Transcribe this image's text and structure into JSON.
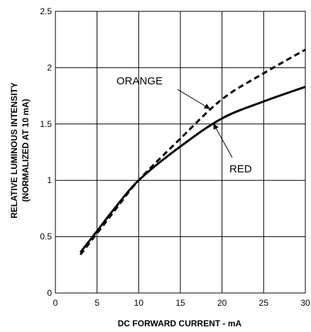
{
  "chart_data": {
    "type": "line",
    "xlabel": "DC FORWARD CURRENT - mA",
    "ylabel_line1": "RELATIVE LUMINOUS INTENSITY",
    "ylabel_line2": "(NORMALIZED AT 10 mA)",
    "xlim": [
      0,
      30
    ],
    "ylim": [
      0,
      2.5
    ],
    "x_ticks": [
      0,
      5,
      10,
      15,
      20,
      25,
      30
    ],
    "y_ticks": [
      0,
      0.5,
      1,
      1.5,
      2,
      2.5
    ],
    "x_tick_labels": [
      "0",
      "5",
      "10",
      "15",
      "20",
      "25",
      "30"
    ],
    "y_tick_labels": [
      "0",
      "0.5",
      "1",
      "1.5",
      "2",
      "2.5"
    ],
    "grid": true,
    "series": [
      {
        "name": "RED",
        "style": "solid",
        "x": [
          3,
          5,
          7,
          10,
          15,
          20,
          25,
          30
        ],
        "y": [
          0.36,
          0.55,
          0.74,
          1.0,
          1.3,
          1.55,
          1.7,
          1.83
        ]
      },
      {
        "name": "ORANGE",
        "style": "dashed",
        "x": [
          3,
          5,
          7,
          10,
          15,
          20,
          25,
          30
        ],
        "y": [
          0.34,
          0.53,
          0.72,
          1.0,
          1.37,
          1.72,
          1.95,
          2.16
        ]
      }
    ],
    "annotations": [
      {
        "text": "ORANGE",
        "points_to_series": "ORANGE"
      },
      {
        "text": "RED",
        "points_to_series": "RED"
      }
    ],
    "colors": {
      "line": "#000000",
      "grid": "#000000"
    }
  }
}
